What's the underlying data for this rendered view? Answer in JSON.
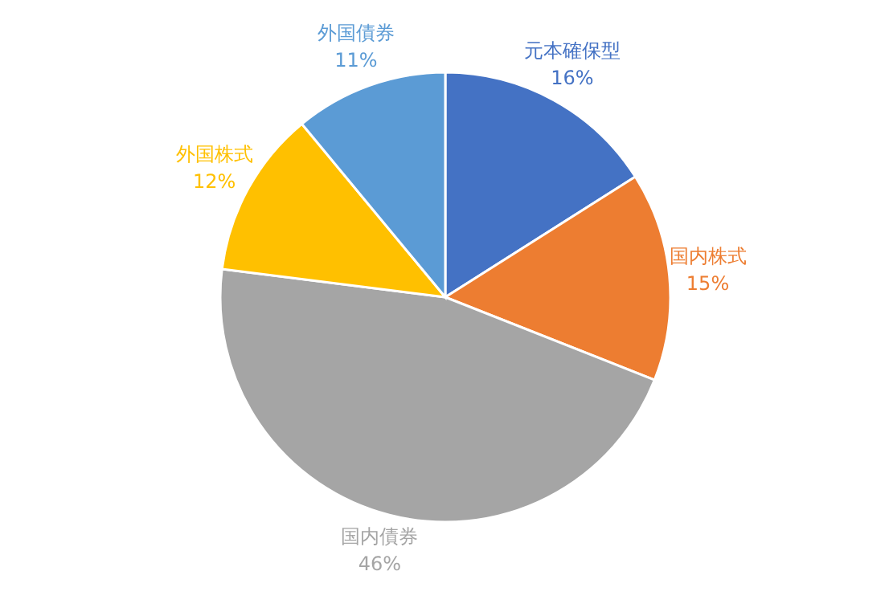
{
  "chart_data": {
    "type": "pie",
    "categories": [
      "元本確保型",
      "国内株式",
      "国内債券",
      "外国株式",
      "外国債券"
    ],
    "values": [
      16,
      15,
      46,
      12,
      11
    ],
    "colors": [
      "#4472c4",
      "#ed7d31",
      "#a5a5a5",
      "#ffc000",
      "#5b9bd5"
    ],
    "value_labels": [
      "16%",
      "15%",
      "46%",
      "12%",
      "11%"
    ],
    "legend": false
  }
}
